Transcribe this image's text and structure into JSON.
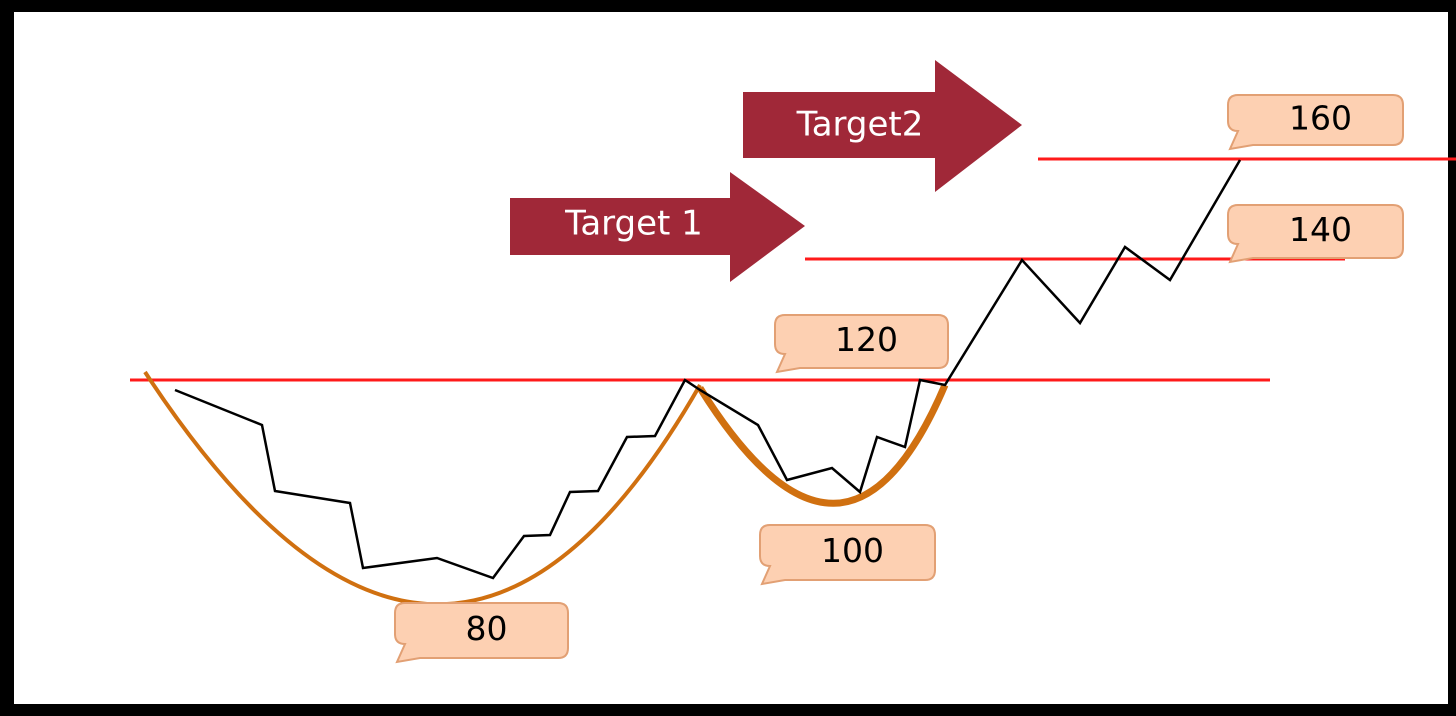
{
  "arrows": [
    {
      "label": "Target2"
    },
    {
      "label": "Target 1"
    }
  ],
  "callouts": [
    {
      "label": "160"
    },
    {
      "label": "140"
    },
    {
      "label": "120"
    },
    {
      "label": "100"
    },
    {
      "label": "80"
    }
  ]
}
